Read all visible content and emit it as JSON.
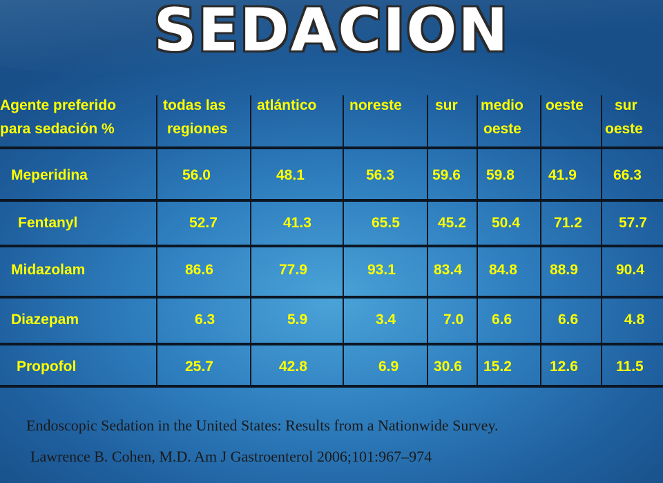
{
  "slide": {
    "title": "SEDACION"
  },
  "table": {
    "headers": [
      [
        "Agente preferido",
        "para sedación %"
      ],
      [
        "todas las",
        "regiones"
      ],
      [
        "atlántico",
        ""
      ],
      [
        "noreste",
        ""
      ],
      [
        "sur",
        ""
      ],
      [
        "medio",
        "oeste"
      ],
      [
        "oeste",
        ""
      ],
      [
        "sur",
        "oeste"
      ]
    ],
    "rows": [
      [
        "Meperidina",
        "56.0",
        "48.1",
        "56.3",
        "59.6",
        "59.8",
        "41.9",
        "66.3"
      ],
      [
        "Fentanyl",
        "52.7",
        "41.3",
        "65.5",
        "45.2",
        "50.4",
        "71.2",
        "57.7"
      ],
      [
        "Midazolam",
        "86.6",
        "77.9",
        "93.1",
        "83.4",
        "84.8",
        "88.9",
        "90.4"
      ],
      [
        "Diazepam",
        "6.3",
        "5.9",
        "3.4",
        "7.0",
        "6.6",
        "6.6",
        "4.8"
      ],
      [
        "Propofol",
        "25.7",
        "42.8",
        "6.9",
        "30.6",
        "15.2",
        "12.6",
        "11.5"
      ]
    ]
  },
  "citation": {
    "line1": "Endoscopic Sedation in the United States: Results from a Nationwide Survey.",
    "line2": "Lawrence B. Cohen, M.D. Am J Gastroenterol 2006;101:967–974"
  },
  "colors": {
    "accent_text": "#ffff00",
    "background": "#2f7fbf"
  }
}
